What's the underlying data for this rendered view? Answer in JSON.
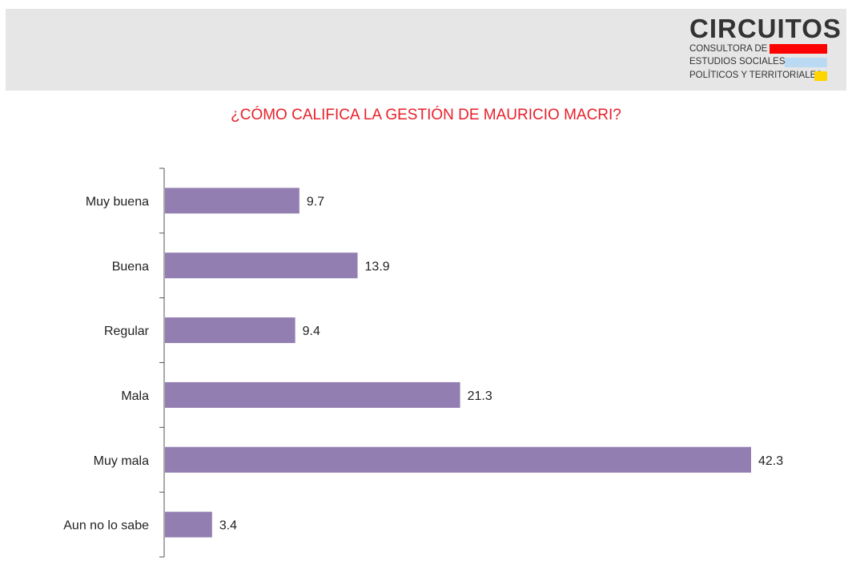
{
  "header": {
    "logo": {
      "name": "CIRCUITOS",
      "line1": "CONSULTORA DE",
      "line2": "ESTUDIOS SOCIALES,",
      "line3": "POLÍTICOS Y TERRITORIALES",
      "stripe_colors": [
        "#ff0000",
        "#b9daf2",
        "#ffd500"
      ]
    },
    "background_color": "#e6e6e6"
  },
  "chart_data": {
    "type": "bar",
    "orientation": "horizontal",
    "title": "¿CÓMO CALIFICA LA GESTIÓN DE MAURICIO MACRI?",
    "title_color": "#e8202a",
    "categories": [
      "Muy buena",
      "Buena",
      "Regular",
      "Mala",
      "Muy mala",
      "Aun no lo sabe"
    ],
    "values": [
      9.7,
      13.9,
      9.4,
      21.3,
      42.3,
      3.4
    ],
    "data_labels": [
      "9.7",
      "13.9",
      "9.4",
      "21.3",
      "42.3",
      "3.4"
    ],
    "bar_color": "#937eb2",
    "xlim": [
      0,
      42.3
    ],
    "grid": false,
    "legend": "none"
  }
}
